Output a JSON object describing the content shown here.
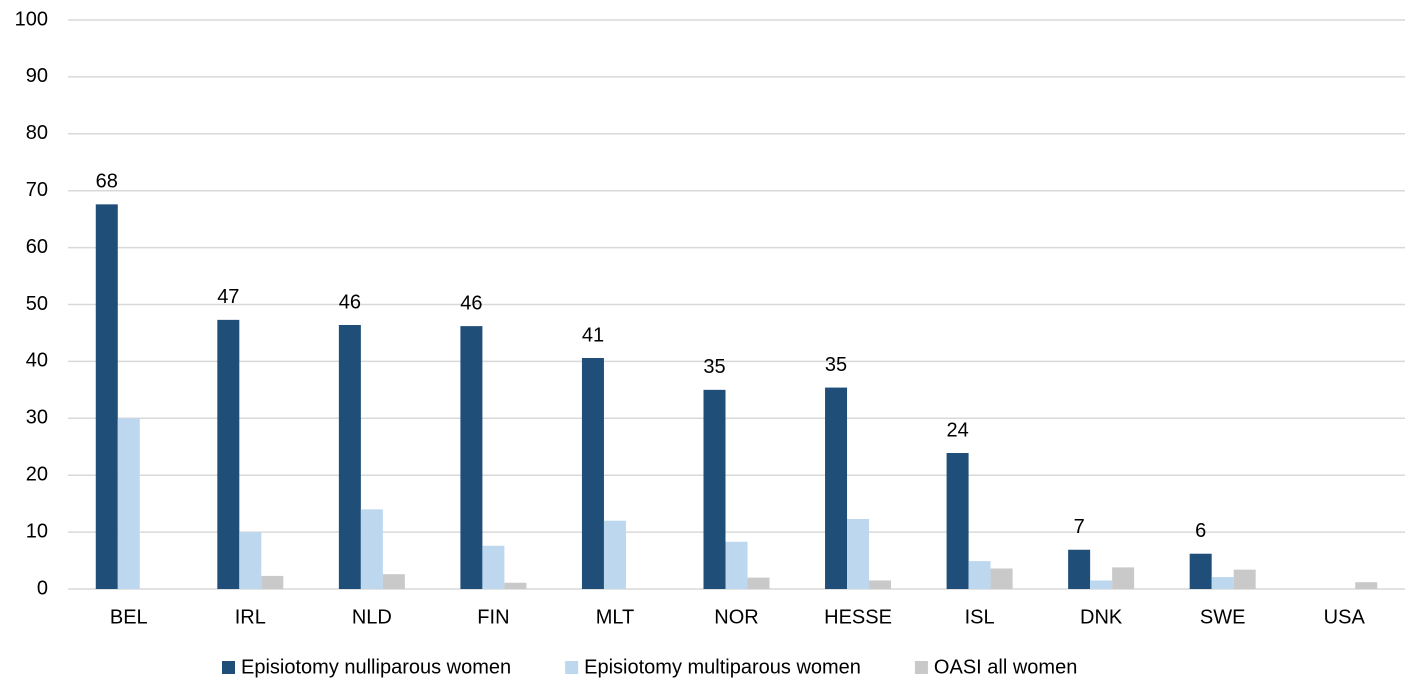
{
  "chart_data": {
    "type": "bar",
    "categories": [
      "BEL",
      "IRL",
      "NLD",
      "FIN",
      "MLT",
      "NOR",
      "HESSE",
      "ISL",
      "DNK",
      "SWE",
      "USA"
    ],
    "series": [
      {
        "name": "Episiotomy nulliparous women",
        "color": "#1f4e79",
        "values": [
          67.6,
          47.3,
          46.4,
          46.2,
          40.6,
          35.0,
          35.4,
          23.9,
          6.9,
          6.2,
          null
        ],
        "value_labels": [
          "68",
          "47",
          "46",
          "46",
          "41",
          "35",
          "35",
          "24",
          "7",
          "6",
          null
        ]
      },
      {
        "name": "Episiotomy multiparous women",
        "color": "#bdd7ee",
        "values": [
          30,
          10,
          14,
          7.6,
          12,
          8.3,
          12.3,
          4.9,
          1.5,
          2.1,
          null
        ]
      },
      {
        "name": "OASI all women",
        "color": "#c9c9c9",
        "values": [
          null,
          2.3,
          2.6,
          1.1,
          null,
          2,
          1.5,
          3.6,
          3.8,
          3.4,
          1.2
        ]
      }
    ],
    "ylim": [
      0,
      100
    ],
    "yticks": [
      0,
      10,
      20,
      30,
      40,
      50,
      60,
      70,
      80,
      90,
      100
    ],
    "grid": true,
    "legend": "bottom"
  }
}
